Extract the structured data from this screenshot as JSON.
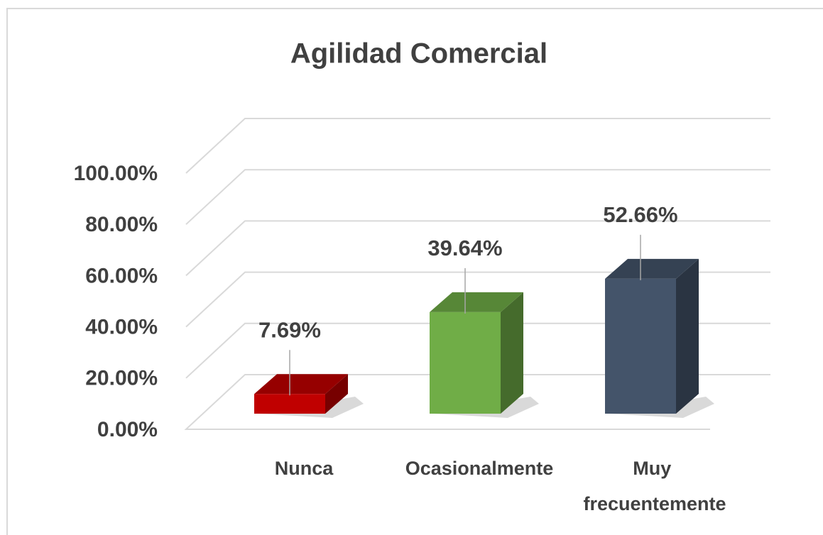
{
  "chart_data": {
    "type": "bar3d",
    "title": "Agilidad Comercial",
    "categories": [
      "Nunca",
      "Ocasionalmente",
      "Muy frecuentemente"
    ],
    "values": [
      7.69,
      39.64,
      52.66
    ],
    "value_labels": [
      "7.69%",
      "39.64%",
      "52.66%"
    ],
    "colors": [
      "#c00000",
      "#70ad47",
      "#44546a"
    ],
    "ylim": [
      0,
      100
    ],
    "yticks": [
      {
        "value": 0,
        "label": "0.00%"
      },
      {
        "value": 20,
        "label": "20.00%"
      },
      {
        "value": 40,
        "label": "40.00%"
      },
      {
        "value": 60,
        "label": "60.00%"
      },
      {
        "value": 80,
        "label": "80.00%"
      },
      {
        "value": 100,
        "label": "100.00%"
      }
    ],
    "grid": true
  }
}
